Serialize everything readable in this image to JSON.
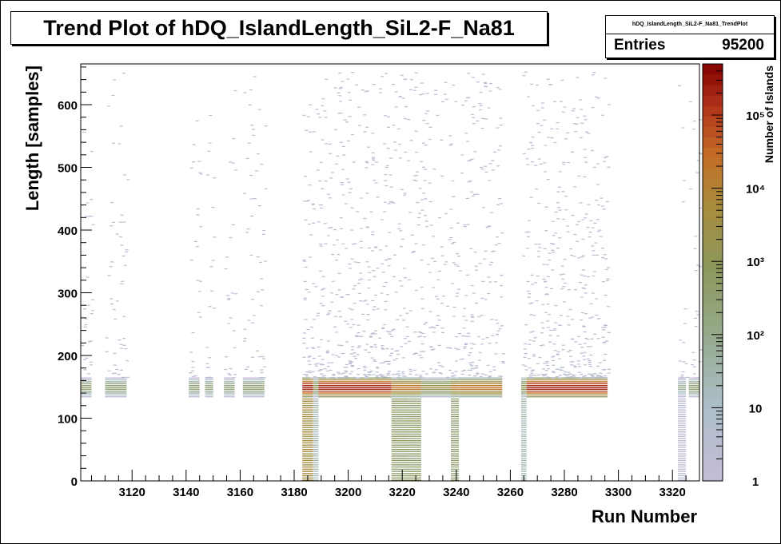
{
  "chart_data": {
    "type": "heatmap",
    "title": "Trend Plot of hDQ_IslandLength_SiL2-F_Na81",
    "xlabel": "Run Number",
    "ylabel": "Length [samples]",
    "zlabel": "Number of Islands",
    "xlim": [
      3101,
      3330
    ],
    "ylim": [
      0,
      665
    ],
    "x_ticks": [
      3120,
      3140,
      3160,
      3180,
      3200,
      3220,
      3240,
      3260,
      3280,
      3300,
      3320
    ],
    "y_ticks": [
      0,
      100,
      200,
      300,
      400,
      500,
      600
    ],
    "z_scale": "log",
    "z_ticks": [
      "1",
      "10",
      "10²",
      "10³",
      "10⁴",
      "10⁵"
    ],
    "zlim": [
      1,
      500000
    ],
    "dense_band": {
      "y_range": [
        135,
        165
      ],
      "peak_y": 150
    },
    "run_blocks": [
      {
        "x_range": [
          3101,
          3105
        ],
        "peak": 400,
        "tail": false
      },
      {
        "x_range": [
          3110,
          3118
        ],
        "peak": 500,
        "tail": false
      },
      {
        "x_range": [
          3141,
          3145
        ],
        "peak": 400,
        "tail": false
      },
      {
        "x_range": [
          3147,
          3150
        ],
        "peak": 300,
        "tail": false
      },
      {
        "x_range": [
          3154,
          3158
        ],
        "peak": 300,
        "tail": false
      },
      {
        "x_range": [
          3161,
          3169
        ],
        "peak": 500,
        "tail": false
      },
      {
        "x_range": [
          3183,
          3187
        ],
        "peak": 300000,
        "tail": true
      },
      {
        "x_range": [
          3187,
          3189
        ],
        "peak": 1500,
        "tail": true
      },
      {
        "x_range": [
          3189,
          3216
        ],
        "peak": 300000,
        "tail": false
      },
      {
        "x_range": [
          3216,
          3222
        ],
        "peak": 30000,
        "tail": true
      },
      {
        "x_range": [
          3222,
          3227
        ],
        "peak": 30000,
        "tail": true
      },
      {
        "x_range": [
          3227,
          3238
        ],
        "peak": 3000,
        "tail": false
      },
      {
        "x_range": [
          3238,
          3241
        ],
        "peak": 20000,
        "tail": true
      },
      {
        "x_range": [
          3241,
          3257
        ],
        "peak": 30000,
        "tail": false
      },
      {
        "x_range": [
          3264,
          3266
        ],
        "peak": 2000,
        "tail": true
      },
      {
        "x_range": [
          3266,
          3296
        ],
        "peak": 300000,
        "tail": false
      },
      {
        "x_range": [
          3322,
          3325
        ],
        "peak": 100,
        "tail": true
      },
      {
        "x_range": [
          3326,
          3330
        ],
        "peak": 500,
        "tail": false
      }
    ],
    "grid": false,
    "legend": "colorbar-right"
  },
  "stats": {
    "name": "hDQ_IslandLength_SiL2-F_Na81_TrendPlot",
    "entries_label": "Entries",
    "entries_value": "95200"
  }
}
